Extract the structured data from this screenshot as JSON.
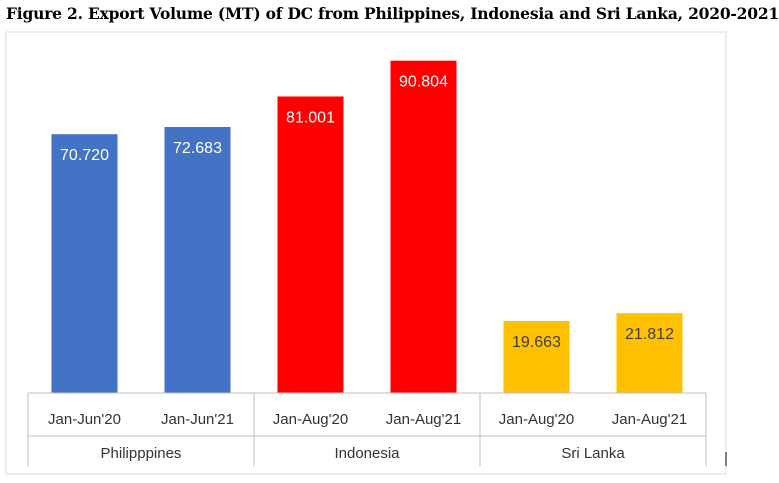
{
  "title": "Figure 2. Export Volume (MT) of DC from Philippines, Indonesia and Sri Lanka, 2020-2021",
  "chart_data": {
    "type": "bar",
    "title": "Figure 2. Export Volume (MT) of DC from Philippines, Indonesia and Sri Lanka, 2020-2021",
    "groups": [
      {
        "name": "Philipppines",
        "color": "#4472C4",
        "label_color": "#FFFFFF",
        "bars": [
          {
            "category": "Jan-Jun'20",
            "value": 70.72,
            "label": "70.720"
          },
          {
            "category": "Jan-Jun'21",
            "value": 72.683,
            "label": "72.683"
          }
        ]
      },
      {
        "name": "Indonesia",
        "color": "#FF0000",
        "label_color": "#FFFFFF",
        "bars": [
          {
            "category": "Jan-Aug'20",
            "value": 81.001,
            "label": "81.001"
          },
          {
            "category": "Jan-Aug'21",
            "value": 90.804,
            "label": "90.804"
          }
        ]
      },
      {
        "name": "Sri Lanka",
        "color": "#FFC000",
        "label_color": "#404040",
        "bars": [
          {
            "category": "Jan-Aug'20",
            "value": 19.663,
            "label": "19.663"
          },
          {
            "category": "Jan-Aug'21",
            "value": 21.812,
            "label": "21.812"
          }
        ]
      }
    ],
    "xlabel": "",
    "ylabel": "",
    "ylim": [
      0,
      100
    ],
    "grid": false,
    "legend": "none"
  }
}
